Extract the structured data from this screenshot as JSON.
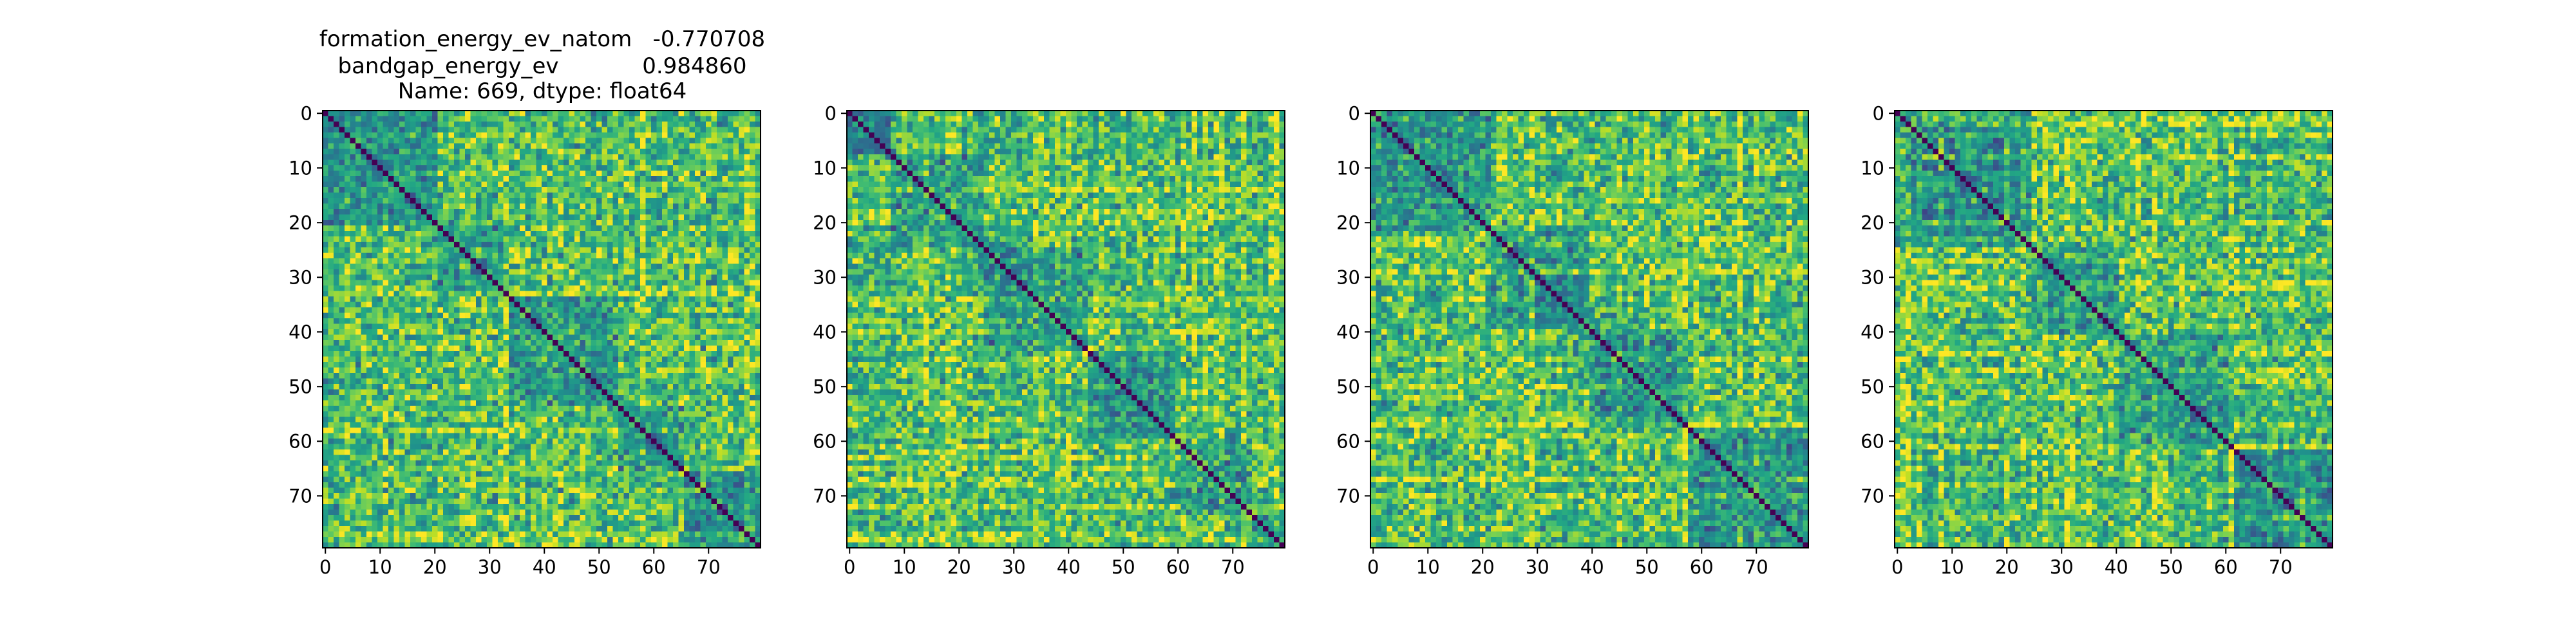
{
  "figure_title": {
    "lines": [
      "formation_energy_ev_natom   -0.770708",
      "bandgap_energy_ev            0.984860",
      "Name: 669, dtype: float64"
    ]
  },
  "chart_data": [
    {
      "type": "heatmap",
      "size": 80,
      "colormap": "viridis",
      "value_range": [
        0,
        1
      ],
      "diagonal_value": 0,
      "cluster_breaks": [
        0,
        21,
        34,
        54,
        66,
        80
      ],
      "xticks": [
        0,
        10,
        20,
        30,
        40,
        50,
        60,
        70
      ],
      "yticks": [
        0,
        10,
        20,
        30,
        40,
        50,
        60,
        70
      ],
      "xlim": [
        0,
        79
      ],
      "ylim": [
        79,
        0
      ],
      "seed": 11
    },
    {
      "type": "heatmap",
      "size": 80,
      "colormap": "viridis",
      "value_range": [
        0,
        1
      ],
      "diagonal_value": 0,
      "cluster_breaks": [
        0,
        8,
        25,
        44,
        60,
        74,
        80
      ],
      "xticks": [
        0,
        10,
        20,
        30,
        40,
        50,
        60,
        70
      ],
      "yticks": [
        0,
        10,
        20,
        30,
        40,
        50,
        60,
        70
      ],
      "xlim": [
        0,
        79
      ],
      "ylim": [
        79,
        0
      ],
      "seed": 29
    },
    {
      "type": "heatmap",
      "size": 80,
      "colormap": "viridis",
      "value_range": [
        0,
        1
      ],
      "diagonal_value": 0,
      "cluster_breaks": [
        0,
        22,
        40,
        58,
        80
      ],
      "xticks": [
        0,
        10,
        20,
        30,
        40,
        50,
        60,
        70
      ],
      "yticks": [
        0,
        10,
        20,
        30,
        40,
        50,
        60,
        70
      ],
      "xlim": [
        0,
        79
      ],
      "ylim": [
        79,
        0
      ],
      "seed": 47
    },
    {
      "type": "heatmap",
      "size": 80,
      "colormap": "viridis",
      "value_range": [
        0,
        1
      ],
      "diagonal_value": 0,
      "cluster_breaks": [
        0,
        25,
        41,
        62,
        80
      ],
      "xticks": [
        0,
        10,
        20,
        30,
        40,
        50,
        60,
        70
      ],
      "yticks": [
        0,
        10,
        20,
        30,
        40,
        50,
        60,
        70
      ],
      "xlim": [
        0,
        79
      ],
      "ylim": [
        79,
        0
      ],
      "seed": 73
    }
  ]
}
